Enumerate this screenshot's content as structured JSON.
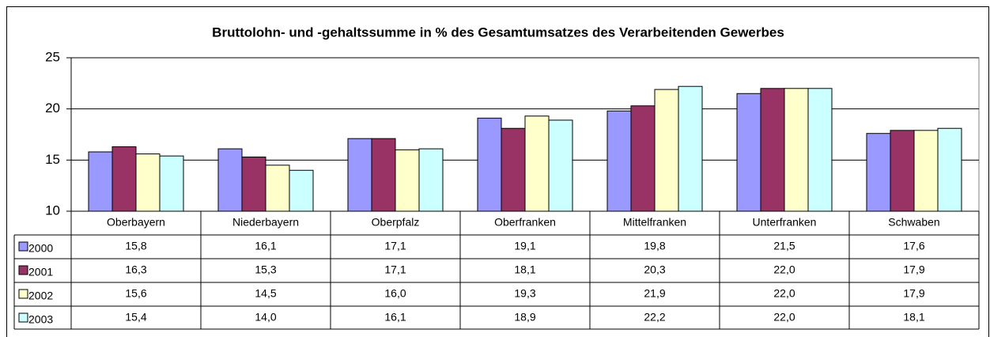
{
  "chart_data": {
    "type": "bar",
    "title": "Bruttolohn- und -gehaltssumme in % des Gesamtumsatzes des Verarbeitenden Gewerbes",
    "categories": [
      "Oberbayern",
      "Niederbayern",
      "Oberpfalz",
      "Oberfranken",
      "Mittelfranken",
      "Unterfranken",
      "Schwaben"
    ],
    "series": [
      {
        "name": "2000",
        "color": "#9999ff",
        "values": [
          15.8,
          16.1,
          17.1,
          19.1,
          19.8,
          21.5,
          17.6
        ],
        "value_labels": [
          "15,8",
          "16,1",
          "17,1",
          "19,1",
          "19,8",
          "21,5",
          "17,6"
        ]
      },
      {
        "name": "2001",
        "color": "#993366",
        "values": [
          16.3,
          15.3,
          17.1,
          18.1,
          20.3,
          22.0,
          17.9
        ],
        "value_labels": [
          "16,3",
          "15,3",
          "17,1",
          "18,1",
          "20,3",
          "22,0",
          "17,9"
        ]
      },
      {
        "name": "2002",
        "color": "#ffffcc",
        "values": [
          15.6,
          14.5,
          16.0,
          19.3,
          21.9,
          22.0,
          17.9
        ],
        "value_labels": [
          "15,6",
          "14,5",
          "16,0",
          "19,3",
          "21,9",
          "22,0",
          "17,9"
        ]
      },
      {
        "name": "2003",
        "color": "#ccffff",
        "values": [
          15.4,
          14.0,
          16.1,
          18.9,
          22.2,
          22.0,
          18.1
        ],
        "value_labels": [
          "15,4",
          "14,0",
          "16,1",
          "18,9",
          "22,2",
          "22,0",
          "18,1"
        ]
      }
    ],
    "ylim": [
      10,
      25
    ],
    "yticks": [
      10,
      15,
      20,
      25
    ],
    "grid": true
  }
}
